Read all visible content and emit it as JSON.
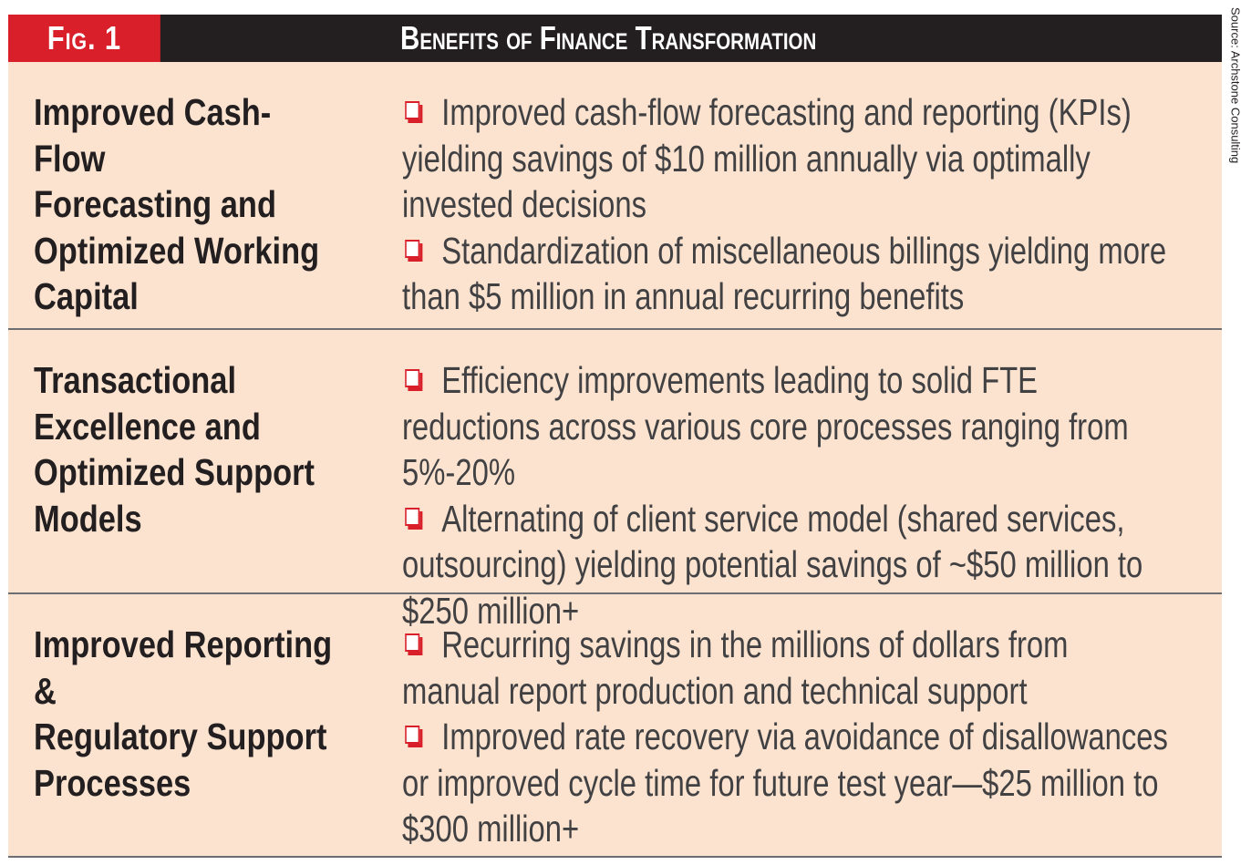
{
  "figure": {
    "label": "Fig. 1",
    "title": "Benefits of Finance Transformation",
    "source": "Source: Archstone Consulting",
    "colors": {
      "header_background": "#231f20",
      "label_background": "#d9202a",
      "table_background": "#fbe3cf",
      "bullet_box": "#d9202a",
      "divider": "#6d6e71"
    },
    "bullet_icon": "checkbox-square-icon",
    "rows": [
      {
        "category": "Improved Cash-Flow\nForecasting and\nOptimized Working\nCapital",
        "bullets": [
          "Improved cash-flow forecasting and reporting (KPIs) yielding savings of $10 million annually via optimally invested decisions",
          "Standardization of miscellaneous billings yielding more than $5 million in annual recurring benefits"
        ]
      },
      {
        "category": "Transactional\nExcellence and\nOptimized Support\nModels",
        "bullets": [
          "Efficiency improvements leading to solid FTE reductions across various core processes ranging from 5%-20%",
          "Alternating of client service model (shared services, outsourcing) yielding potential savings of ~$50 million to $250 million+"
        ]
      },
      {
        "category": "Improved Reporting &\nRegulatory Support\nProcesses",
        "bullets": [
          "Recurring savings in the millions of dollars from manual report production and technical support",
          "Improved rate recovery via avoidance of disallowances or improved cycle time for future test year—$25 million to $300 million+"
        ]
      }
    ]
  }
}
